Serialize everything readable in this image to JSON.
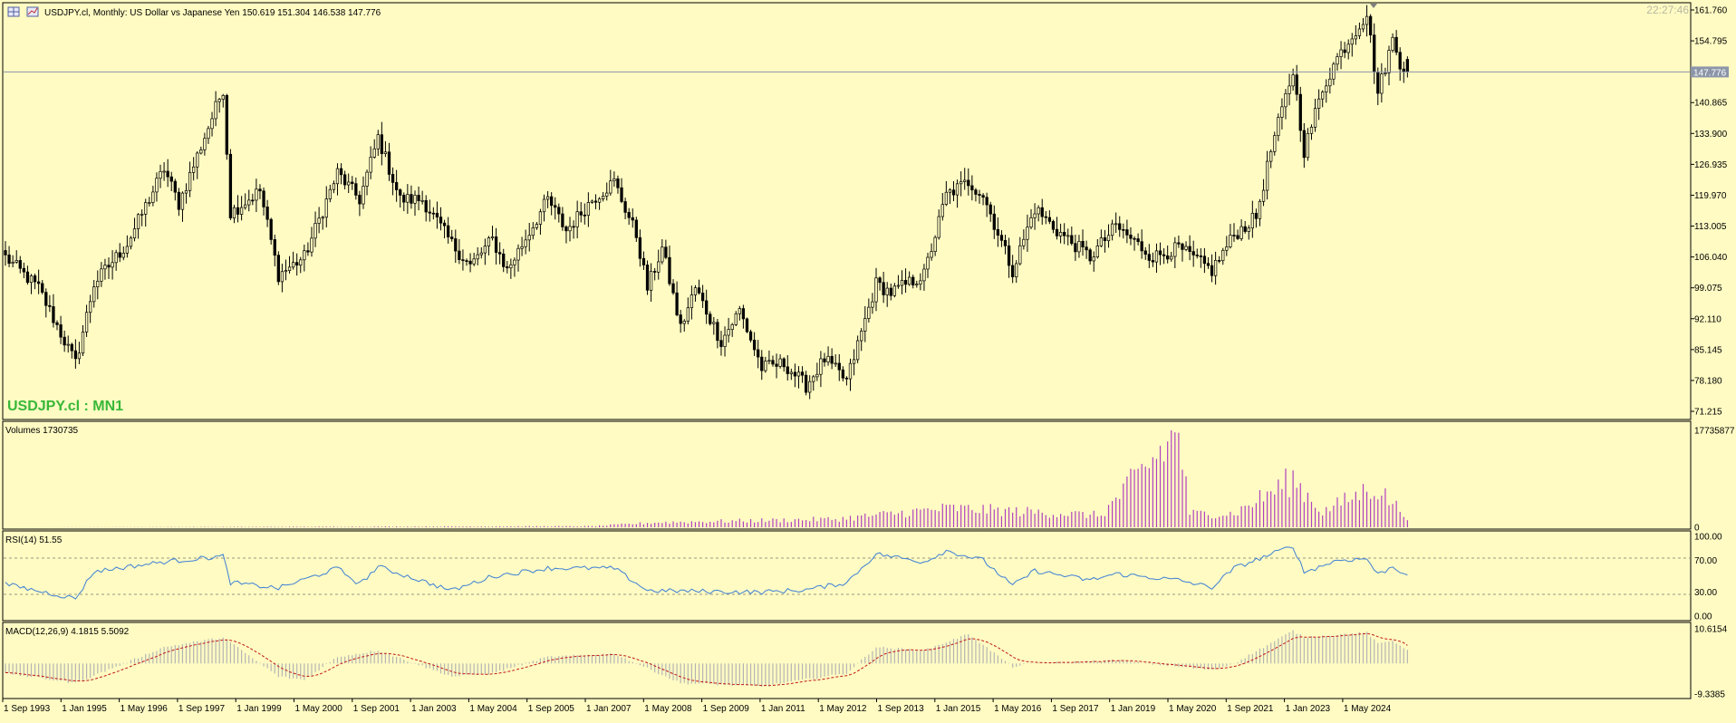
{
  "window": {
    "symbol_title": "USDJPY.cl, Monthly:  US Dollar vs Japanese Yen  150.619 151.304 146.538 147.776",
    "clock": "22:27:46",
    "watermark": "USDJPY.cl : MN1",
    "current_price_label": "147.776"
  },
  "panels": {
    "volumes_label": "Volumes 1730735",
    "rsi_label": "RSI(14) 51.55",
    "macd_label": "MACD(12,26,9) 4.1815 5.5092"
  },
  "axes": {
    "price_ticks": [
      "161.760",
      "154.795",
      "140.865",
      "133.900",
      "126.935",
      "119.970",
      "113.005",
      "106.040",
      "99.075",
      "92.110",
      "85.145",
      "78.180",
      "71.215"
    ],
    "volume_ticks": [
      "17735877",
      "0"
    ],
    "rsi_ticks": [
      "100.00",
      "70.00",
      "30.00",
      "0.00"
    ],
    "macd_ticks": [
      "10.6154",
      "-9.3385"
    ],
    "time_ticks": [
      "1 Sep 1993",
      "1 Jan 1995",
      "1 May 1996",
      "1 Sep 1997",
      "1 Jan 1999",
      "1 May 2000",
      "1 Sep 2001",
      "1 Jan 2003",
      "1 May 2004",
      "1 Sep 2005",
      "1 Jan 2007",
      "1 May 2008",
      "1 Sep 2009",
      "1 Jan 2011",
      "1 May 2012",
      "1 Sep 2013",
      "1 Jan 2015",
      "1 May 2016",
      "1 Sep 2017",
      "1 Jan 2019",
      "1 May 2020",
      "1 Sep 2021",
      "1 Jan 2023",
      "1 May 2024"
    ]
  },
  "colors": {
    "background": "#fffbc3",
    "candle": "#000000",
    "volume": "#b040c0",
    "rsi_line": "#3c7fd6",
    "macd_hist": "#b4b4b4",
    "macd_signal": "#c01818",
    "watermark": "#38b838",
    "current_line": "#8c96a8"
  },
  "chart_data": [
    {
      "type": "candlestick",
      "title": "USDJPY.cl, Monthly",
      "x_start": "1993-09",
      "x_step": "1 month",
      "ylim": [
        71.215,
        161.76
      ],
      "current_price": 147.776,
      "last_bar": {
        "open": 150.619,
        "high": 151.304,
        "low": 146.538,
        "close": 147.776
      },
      "close_anchors": [
        [
          "1993-09",
          106.0
        ],
        [
          "1994-06",
          99.0
        ],
        [
          "1995-04",
          82.0
        ],
        [
          "1995-09",
          100.0
        ],
        [
          "1996-06",
          109.0
        ],
        [
          "1997-04",
          126.0
        ],
        [
          "1997-08",
          118.0
        ],
        [
          "1998-08",
          144.0
        ],
        [
          "1998-10",
          116.0
        ],
        [
          "1999-06",
          121.0
        ],
        [
          "1999-11",
          102.0
        ],
        [
          "2000-06",
          106.0
        ],
        [
          "2001-03",
          125.0
        ],
        [
          "2001-09",
          119.0
        ],
        [
          "2002-02",
          133.0
        ],
        [
          "2002-08",
          119.0
        ],
        [
          "2003-02",
          119.0
        ],
        [
          "2003-10",
          109.0
        ],
        [
          "2004-03",
          104.0
        ],
        [
          "2004-09",
          110.0
        ],
        [
          "2005-01",
          103.0
        ],
        [
          "2005-12",
          119.0
        ],
        [
          "2006-05",
          112.0
        ],
        [
          "2006-12",
          119.0
        ],
        [
          "2007-06",
          123.0
        ],
        [
          "2007-12",
          111.0
        ],
        [
          "2008-03",
          99.0
        ],
        [
          "2008-07",
          108.0
        ],
        [
          "2008-12",
          90.0
        ],
        [
          "2009-04",
          99.0
        ],
        [
          "2009-11",
          87.0
        ],
        [
          "2010-04",
          94.0
        ],
        [
          "2010-10",
          81.0
        ],
        [
          "2011-04",
          82.0
        ],
        [
          "2011-10",
          77.0
        ],
        [
          "2012-03",
          83.0
        ],
        [
          "2012-09",
          78.0
        ],
        [
          "2013-05",
          100.0
        ],
        [
          "2013-09",
          98.0
        ],
        [
          "2014-06",
          102.0
        ],
        [
          "2014-12",
          120.0
        ],
        [
          "2015-06",
          123.0
        ],
        [
          "2015-10",
          120.0
        ],
        [
          "2016-06",
          103.0
        ],
        [
          "2016-12",
          117.0
        ],
        [
          "2017-06",
          112.0
        ],
        [
          "2018-03",
          106.0
        ],
        [
          "2018-10",
          113.0
        ],
        [
          "2019-08",
          106.0
        ],
        [
          "2020-03",
          108.0
        ],
        [
          "2020-12",
          103.0
        ],
        [
          "2021-06",
          111.0
        ],
        [
          "2021-12",
          115.0
        ],
        [
          "2022-04",
          130.0
        ],
        [
          "2022-10",
          148.0
        ],
        [
          "2023-01",
          130.0
        ],
        [
          "2023-06",
          144.0
        ],
        [
          "2023-10",
          151.0
        ],
        [
          "2024-06",
          161.0
        ],
        [
          "2024-09",
          143.0
        ],
        [
          "2025-01",
          155.0
        ],
        [
          "2025-03",
          150.0
        ],
        [
          "2025-05",
          147.8
        ]
      ]
    },
    {
      "type": "bar",
      "title": "Volumes",
      "ylim": [
        0,
        17735877
      ],
      "max_value": 17735877,
      "value_anchors": [
        [
          "1993-09",
          0
        ],
        [
          "2006-12",
          200000
        ],
        [
          "2008-06",
          900000
        ],
        [
          "2012-06",
          1500000
        ],
        [
          "2015-01",
          3500000
        ],
        [
          "2018-06",
          2200000
        ],
        [
          "2020-03",
          17300000
        ],
        [
          "2020-06",
          2500000
        ],
        [
          "2021-06",
          2500000
        ],
        [
          "2022-10",
          8800000
        ],
        [
          "2023-06",
          2800000
        ],
        [
          "2024-08",
          7500000
        ],
        [
          "2025-05",
          2000000
        ]
      ]
    },
    {
      "type": "line",
      "title": "RSI(14)",
      "ylim": [
        0,
        100
      ],
      "levels": [
        70,
        30
      ],
      "last_value": 51.55,
      "value_anchors": [
        [
          "1993-09",
          40
        ],
        [
          "1995-04",
          22
        ],
        [
          "1995-09",
          56
        ],
        [
          "1997-04",
          68
        ],
        [
          "1998-08",
          75
        ],
        [
          "1998-10",
          42
        ],
        [
          "1999-11",
          35
        ],
        [
          "2001-03",
          60
        ],
        [
          "2001-09",
          40
        ],
        [
          "2002-02",
          62
        ],
        [
          "2003-10",
          32
        ],
        [
          "2004-09",
          50
        ],
        [
          "2005-12",
          60
        ],
        [
          "2007-06",
          60
        ],
        [
          "2008-03",
          32
        ],
        [
          "2010-10",
          30
        ],
        [
          "2011-10",
          33
        ],
        [
          "2012-09",
          42
        ],
        [
          "2013-05",
          78
        ],
        [
          "2014-06",
          68
        ],
        [
          "2014-12",
          82
        ],
        [
          "2015-10",
          70
        ],
        [
          "2016-06",
          38
        ],
        [
          "2016-12",
          57
        ],
        [
          "2018-03",
          45
        ],
        [
          "2018-10",
          53
        ],
        [
          "2020-03",
          45
        ],
        [
          "2020-12",
          36
        ],
        [
          "2021-06",
          60
        ],
        [
          "2022-10",
          88
        ],
        [
          "2023-01",
          55
        ],
        [
          "2023-10",
          70
        ],
        [
          "2024-06",
          72
        ],
        [
          "2024-09",
          52
        ],
        [
          "2025-01",
          62
        ],
        [
          "2025-05",
          51.55
        ]
      ]
    },
    {
      "type": "bar",
      "title": "MACD(12,26,9)",
      "ylim": [
        -9.3385,
        10.6154
      ],
      "last_macd": 4.1815,
      "last_signal": 5.5092,
      "value_anchors": [
        [
          "1993-09",
          -3
        ],
        [
          "1995-04",
          -6
        ],
        [
          "1997-04",
          5
        ],
        [
          "1998-08",
          8
        ],
        [
          "1999-11",
          -4
        ],
        [
          "2000-06",
          -5
        ],
        [
          "2001-03",
          2
        ],
        [
          "2002-02",
          4
        ],
        [
          "2003-10",
          -4
        ],
        [
          "2004-09",
          -3
        ],
        [
          "2005-12",
          2
        ],
        [
          "2007-06",
          3
        ],
        [
          "2008-12",
          -6
        ],
        [
          "2010-10",
          -7
        ],
        [
          "2012-09",
          -3
        ],
        [
          "2013-05",
          5
        ],
        [
          "2014-06",
          4
        ],
        [
          "2015-06",
          9
        ],
        [
          "2016-06",
          -1
        ],
        [
          "2016-12",
          0
        ],
        [
          "2018-10",
          1
        ],
        [
          "2020-03",
          -1
        ],
        [
          "2020-12",
          -2
        ],
        [
          "2021-06",
          0
        ],
        [
          "2022-10",
          10
        ],
        [
          "2023-01",
          8
        ],
        [
          "2024-06",
          9.5
        ],
        [
          "2024-09",
          6
        ],
        [
          "2025-01",
          7
        ],
        [
          "2025-05",
          4.18
        ]
      ]
    }
  ]
}
